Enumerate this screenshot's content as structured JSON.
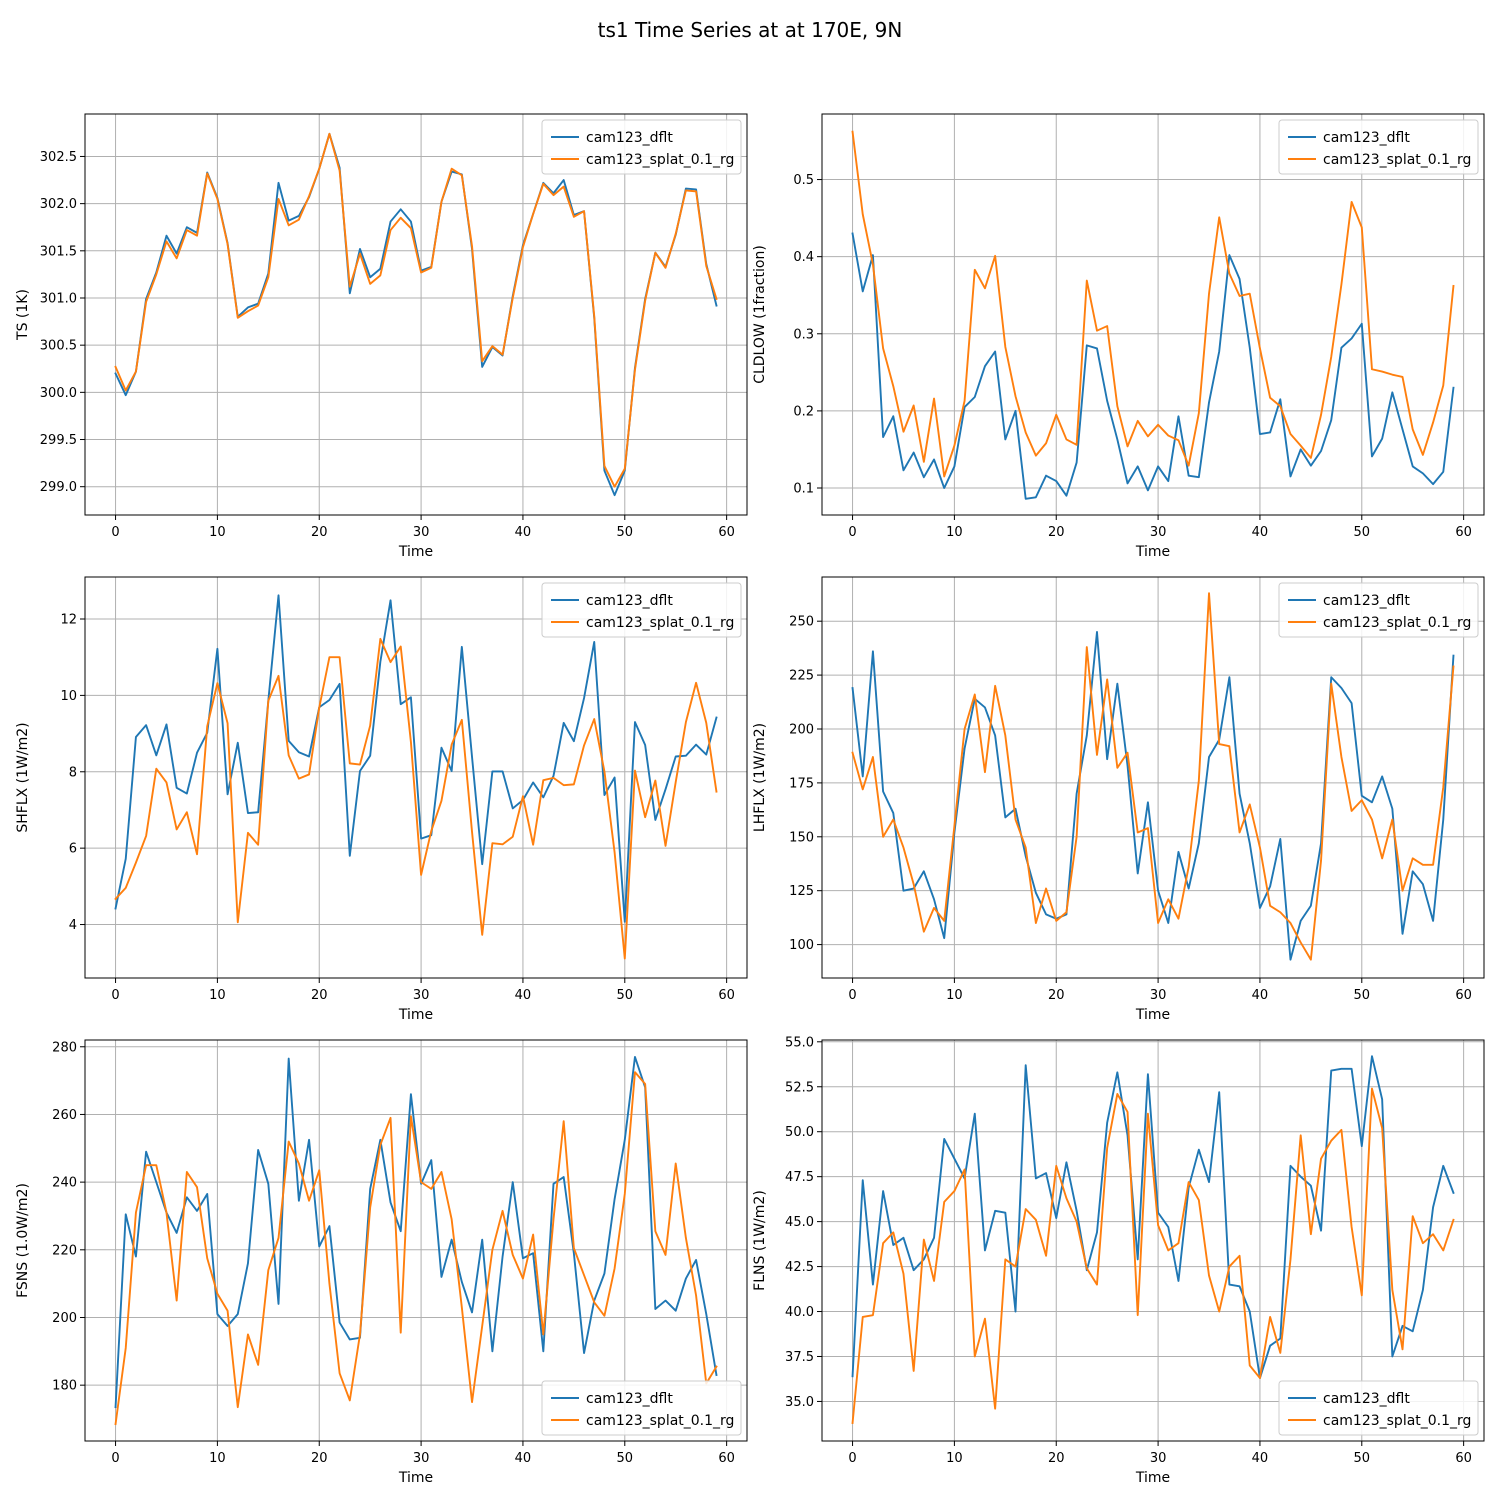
{
  "figure": {
    "title": "ts1 Time Series at at 170E, 9N"
  },
  "colors": {
    "series_0": "#1f77b4",
    "series_1": "#ff7f0e",
    "grid": "#b0b0b0"
  },
  "chart_data": [
    {
      "type": "line",
      "xlabel": "Time",
      "ylabel": "TS (1K)",
      "xlim": [
        -3,
        62
      ],
      "ylim": [
        298.7,
        302.95
      ],
      "xticks": [
        0,
        10,
        20,
        30,
        40,
        50,
        60
      ],
      "yticks": [
        299.0,
        299.5,
        300.0,
        300.5,
        301.0,
        301.5,
        302.0,
        302.5
      ],
      "ytick_labels": [
        "299.0",
        "299.5",
        "300.0",
        "300.5",
        "301.0",
        "301.5",
        "302.0",
        "302.5"
      ],
      "grid": true,
      "legend_position": "upper right",
      "series": [
        {
          "name": "cam123_dflt",
          "values": [
            300.2,
            299.97,
            300.22,
            300.99,
            301.27,
            301.66,
            301.47,
            301.75,
            301.69,
            302.33,
            302.06,
            301.58,
            300.8,
            300.9,
            300.94,
            301.26,
            302.22,
            301.82,
            301.87,
            302.07,
            302.37,
            302.74,
            302.38,
            301.05,
            301.52,
            301.22,
            301.31,
            301.81,
            301.94,
            301.81,
            301.29,
            301.33,
            302.02,
            302.34,
            302.31,
            301.52,
            300.27,
            300.48,
            300.39,
            301.02,
            301.56,
            301.89,
            302.22,
            302.11,
            302.25,
            301.88,
            301.92,
            300.79,
            299.17,
            298.91,
            299.17,
            300.26,
            300.99,
            301.48,
            301.33,
            301.67,
            302.16,
            302.15,
            301.36,
            300.92
          ]
        },
        {
          "name": "cam123_splat_0.1_rg",
          "values": [
            300.27,
            300.02,
            300.22,
            300.96,
            301.25,
            301.6,
            301.42,
            301.72,
            301.66,
            302.32,
            302.05,
            301.57,
            300.79,
            300.86,
            300.92,
            301.22,
            302.05,
            301.77,
            301.83,
            302.08,
            302.37,
            302.74,
            302.35,
            301.12,
            301.47,
            301.15,
            301.24,
            301.72,
            301.85,
            301.74,
            301.27,
            301.32,
            302.02,
            302.37,
            302.3,
            301.55,
            300.33,
            300.49,
            300.4,
            301.0,
            301.54,
            301.89,
            302.21,
            302.09,
            302.18,
            301.86,
            301.92,
            300.81,
            299.22,
            299.0,
            299.19,
            300.24,
            300.97,
            301.48,
            301.32,
            301.68,
            302.14,
            302.13,
            301.34,
            300.99
          ]
        }
      ]
    },
    {
      "type": "line",
      "xlabel": "Time",
      "ylabel": "CLDLOW (1fraction)",
      "xlim": [
        -3,
        62
      ],
      "ylim": [
        0.065,
        0.585
      ],
      "xticks": [
        0,
        10,
        20,
        30,
        40,
        50,
        60
      ],
      "yticks": [
        0.1,
        0.2,
        0.3,
        0.4,
        0.5
      ],
      "ytick_labels": [
        "0.1",
        "0.2",
        "0.3",
        "0.4",
        "0.5"
      ],
      "grid": true,
      "legend_position": "upper right",
      "series": [
        {
          "name": "cam123_dflt",
          "values": [
            0.43,
            0.355,
            0.402,
            0.166,
            0.193,
            0.123,
            0.146,
            0.114,
            0.137,
            0.1,
            0.128,
            0.205,
            0.218,
            0.258,
            0.277,
            0.163,
            0.2,
            0.086,
            0.088,
            0.116,
            0.109,
            0.09,
            0.133,
            0.285,
            0.281,
            0.213,
            0.163,
            0.106,
            0.128,
            0.097,
            0.128,
            0.109,
            0.193,
            0.116,
            0.114,
            0.211,
            0.277,
            0.402,
            0.371,
            0.282,
            0.17,
            0.172,
            0.215,
            0.115,
            0.15,
            0.129,
            0.148,
            0.188,
            0.282,
            0.294,
            0.313,
            0.141,
            0.164,
            0.224,
            0.176,
            0.128,
            0.119,
            0.105,
            0.121,
            0.23
          ]
        },
        {
          "name": "cam123_splat_0.1_rg",
          "values": [
            0.562,
            0.455,
            0.39,
            0.281,
            0.232,
            0.173,
            0.207,
            0.134,
            0.216,
            0.115,
            0.155,
            0.213,
            0.383,
            0.359,
            0.401,
            0.283,
            0.219,
            0.172,
            0.142,
            0.158,
            0.195,
            0.163,
            0.156,
            0.369,
            0.304,
            0.31,
            0.206,
            0.154,
            0.187,
            0.167,
            0.182,
            0.168,
            0.162,
            0.129,
            0.197,
            0.352,
            0.451,
            0.378,
            0.349,
            0.352,
            0.281,
            0.217,
            0.206,
            0.17,
            0.155,
            0.139,
            0.195,
            0.27,
            0.364,
            0.471,
            0.438,
            0.254,
            0.251,
            0.247,
            0.244,
            0.176,
            0.143,
            0.185,
            0.233,
            0.362
          ]
        }
      ]
    },
    {
      "type": "line",
      "xlabel": "Time",
      "ylabel": "SHFLX (1W/m2)",
      "xlim": [
        -3,
        62
      ],
      "ylim": [
        2.6,
        13.1
      ],
      "xticks": [
        0,
        10,
        20,
        30,
        40,
        50,
        60
      ],
      "yticks": [
        4,
        6,
        8,
        10,
        12
      ],
      "ytick_labels": [
        "4",
        "6",
        "8",
        "10",
        "12"
      ],
      "grid": true,
      "legend_position": "upper right",
      "series": [
        {
          "name": "cam123_dflt",
          "values": [
            4.42,
            5.72,
            8.91,
            9.22,
            8.43,
            9.24,
            7.58,
            7.43,
            8.5,
            9.02,
            11.22,
            7.41,
            8.76,
            6.92,
            6.94,
            9.86,
            12.62,
            8.81,
            8.51,
            8.4,
            9.69,
            9.88,
            10.3,
            5.8,
            8.02,
            8.42,
            10.88,
            12.49,
            9.77,
            9.95,
            6.25,
            6.34,
            8.63,
            8.02,
            11.27,
            8.39,
            5.58,
            8.01,
            8.01,
            7.04,
            7.26,
            7.72,
            7.33,
            7.89,
            9.28,
            8.8,
            9.93,
            11.4,
            7.39,
            7.85,
            4.07,
            9.3,
            8.7,
            6.74,
            7.54,
            8.4,
            8.42,
            8.71,
            8.45,
            9.42
          ]
        },
        {
          "name": "cam123_splat_0.1_rg",
          "values": [
            4.67,
            4.96,
            5.62,
            6.32,
            8.08,
            7.72,
            6.49,
            6.94,
            5.84,
            9.19,
            10.32,
            9.27,
            4.06,
            6.4,
            6.09,
            9.86,
            10.51,
            8.43,
            7.82,
            7.93,
            9.68,
            11.0,
            11.0,
            8.22,
            8.19,
            9.21,
            11.48,
            10.87,
            11.28,
            8.78,
            5.3,
            6.45,
            7.24,
            8.71,
            9.36,
            6.43,
            3.73,
            6.13,
            6.1,
            6.3,
            7.36,
            6.09,
            7.78,
            7.84,
            7.65,
            7.67,
            8.69,
            9.38,
            8.01,
            5.89,
            3.11,
            8.03,
            6.81,
            7.77,
            6.06,
            7.73,
            9.3,
            10.33,
            9.28,
            7.48
          ]
        }
      ]
    },
    {
      "type": "line",
      "xlabel": "Time",
      "ylabel": "LHFLX (1W/m2)",
      "xlim": [
        -3,
        62
      ],
      "ylim": [
        84.5,
        270.5
      ],
      "xticks": [
        0,
        10,
        20,
        30,
        40,
        50,
        60
      ],
      "yticks": [
        100,
        125,
        150,
        175,
        200,
        225,
        250
      ],
      "ytick_labels": [
        "100",
        "125",
        "150",
        "175",
        "200",
        "225",
        "250"
      ],
      "grid": true,
      "legend_position": "upper right",
      "series": [
        {
          "name": "cam123_dflt",
          "values": [
            219,
            178,
            236,
            171,
            161,
            125,
            126,
            134,
            121,
            103,
            152,
            191,
            214,
            210,
            197,
            159,
            163,
            141,
            124,
            114,
            112,
            114,
            170,
            197,
            245,
            186,
            221,
            183,
            133,
            166,
            125,
            110,
            143,
            126,
            147,
            187,
            195,
            224,
            170,
            147,
            117,
            127,
            149,
            93,
            111,
            118,
            147,
            224,
            219,
            212,
            169,
            166,
            178,
            163,
            105,
            134,
            128,
            111,
            158,
            234
          ]
        },
        {
          "name": "cam123_splat_0.1_rg",
          "values": [
            189,
            172,
            187,
            150,
            158,
            145,
            128,
            106,
            117,
            111,
            155,
            200,
            216,
            180,
            220,
            197,
            158,
            145,
            110,
            126,
            111,
            115,
            150,
            238,
            188,
            223,
            182,
            189,
            152,
            154,
            110,
            121,
            112,
            136,
            176,
            263,
            193,
            192,
            152,
            165,
            145,
            118,
            115,
            110,
            101,
            93,
            139,
            221,
            187,
            162,
            167,
            158,
            140,
            158,
            125,
            140,
            137,
            137,
            173,
            229
          ]
        }
      ]
    },
    {
      "type": "line",
      "xlabel": "Time",
      "ylabel": "FSNS (1.0W/m2)",
      "xlim": [
        -3,
        62
      ],
      "ylim": [
        163.5,
        282
      ],
      "xticks": [
        0,
        10,
        20,
        30,
        40,
        50,
        60
      ],
      "yticks": [
        180,
        200,
        220,
        240,
        260,
        280
      ],
      "ytick_labels": [
        "180",
        "200",
        "220",
        "240",
        "260",
        "280"
      ],
      "grid": true,
      "legend_position": "lower right",
      "series": [
        {
          "name": "cam123_dflt",
          "values": [
            173.5,
            230.5,
            218,
            249,
            240,
            231,
            225,
            235.5,
            231.5,
            236.5,
            201,
            197.5,
            201,
            216,
            249.5,
            239.5,
            204,
            276.5,
            234.5,
            252.5,
            221,
            227,
            198.5,
            193.5,
            194,
            238,
            252.5,
            234,
            225.5,
            266,
            239.5,
            246.5,
            212,
            223,
            210.5,
            201.5,
            223,
            190,
            218,
            240,
            217.5,
            219,
            190,
            239.5,
            241.5,
            219,
            189.5,
            205,
            213,
            235,
            252.5,
            277,
            268,
            202.5,
            205,
            202,
            211.5,
            217,
            201,
            183
          ]
        },
        {
          "name": "cam123_splat_0.1_rg",
          "values": [
            168.5,
            191,
            231,
            245,
            245,
            231,
            205,
            243,
            238.5,
            217.5,
            207,
            202,
            173.5,
            195,
            186,
            214,
            223.5,
            252,
            245.5,
            234.5,
            243.5,
            210,
            183.5,
            175.5,
            195,
            232.5,
            251,
            259,
            195.5,
            259.5,
            240,
            238,
            243,
            229,
            203,
            175,
            197.5,
            220,
            231.5,
            218.5,
            211.5,
            224.5,
            195,
            229,
            258,
            220.5,
            212.5,
            204.5,
            200.5,
            214.5,
            236.5,
            272.5,
            269,
            225.5,
            218.5,
            245.5,
            223.5,
            206.5,
            180.5,
            185.5
          ]
        }
      ]
    },
    {
      "type": "line",
      "xlabel": "Time",
      "ylabel": "FLNS (1W/m2)",
      "xlim": [
        -3,
        62
      ],
      "ylim": [
        32.8,
        55.1
      ],
      "xticks": [
        0,
        10,
        20,
        30,
        40,
        50,
        60
      ],
      "yticks": [
        35.0,
        37.5,
        40.0,
        42.5,
        45.0,
        47.5,
        50.0,
        52.5,
        55.0
      ],
      "ytick_labels": [
        "35.0",
        "37.5",
        "40.0",
        "42.5",
        "45.0",
        "47.5",
        "50.0",
        "52.5",
        "55.0"
      ],
      "grid": true,
      "legend_position": "lower right",
      "series": [
        {
          "name": "cam123_dflt",
          "values": [
            36.4,
            47.3,
            41.5,
            46.7,
            43.7,
            44.1,
            42.3,
            42.9,
            44.1,
            49.6,
            48.5,
            47.4,
            51.0,
            43.4,
            45.6,
            45.5,
            40.0,
            53.7,
            47.4,
            47.7,
            45.2,
            48.3,
            45.6,
            42.3,
            44.4,
            50.5,
            53.3,
            49.8,
            42.9,
            53.2,
            45.5,
            44.7,
            41.7,
            46.9,
            49.0,
            47.2,
            52.2,
            41.5,
            41.4,
            40.0,
            36.3,
            38.1,
            38.5,
            48.1,
            47.5,
            47.0,
            44.5,
            53.4,
            53.5,
            53.5,
            49.2,
            54.2,
            51.8,
            37.5,
            39.2,
            38.9,
            41.2,
            45.8,
            48.1,
            46.6
          ]
        },
        {
          "name": "cam123_splat_0.1_rg",
          "values": [
            33.8,
            39.7,
            39.8,
            43.8,
            44.4,
            42.1,
            36.7,
            44.0,
            41.7,
            46.1,
            46.7,
            47.9,
            37.5,
            39.6,
            34.6,
            42.9,
            42.5,
            45.7,
            45.1,
            43.1,
            48.1,
            46.3,
            45.0,
            42.4,
            41.5,
            49.1,
            52.1,
            51.1,
            39.8,
            51.0,
            44.8,
            43.4,
            43.8,
            47.2,
            46.2,
            42.0,
            40.0,
            42.5,
            43.1,
            37.0,
            36.3,
            39.7,
            37.7,
            42.9,
            49.8,
            44.3,
            48.5,
            49.5,
            50.1,
            44.7,
            40.9,
            52.4,
            50.2,
            41.2,
            37.9,
            45.3,
            43.8,
            44.3,
            43.4,
            45.1
          ]
        }
      ]
    }
  ]
}
